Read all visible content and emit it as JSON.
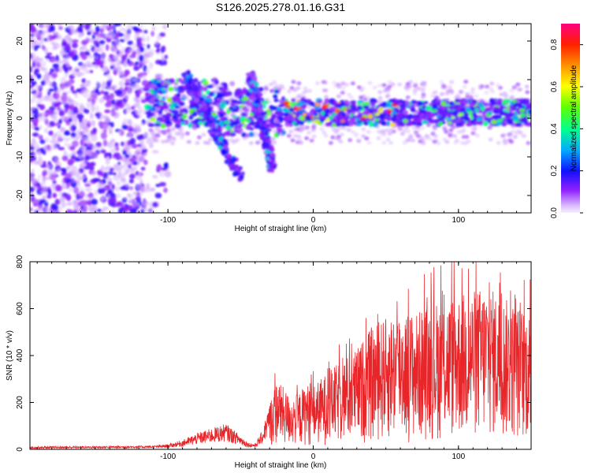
{
  "title": "S126.2025.278.01.16.G31",
  "colorbar": {
    "label": "Normalized spectral amplitude",
    "ticks": [
      "0.0",
      "0.2",
      "0.4",
      "0.6",
      "0.8"
    ],
    "tick_values": [
      0.0,
      0.2,
      0.4,
      0.6,
      0.8
    ],
    "range": [
      0.0,
      0.9
    ]
  },
  "chart_data": [
    {
      "type": "heatmap",
      "title": "S126.2025.278.01.16.G31",
      "xlabel": "Height of straight line (km)",
      "ylabel": "Frequency (Hz)",
      "xlim": [
        -195,
        150
      ],
      "ylim": [
        -24.5,
        24.5
      ],
      "xticks": [
        "-100",
        "0",
        "100"
      ],
      "xtick_values": [
        -100,
        0,
        100
      ],
      "yticks": [
        "-20",
        "-10",
        "0",
        "10",
        "20"
      ],
      "ytick_values": [
        -20,
        -10,
        0,
        10,
        20
      ],
      "colorscale": [
        "#f0e0ff",
        "#c8a0ff",
        "#8000ff",
        "#1010ff",
        "#00c8ff",
        "#00ff80",
        "#ffff00",
        "#ff8000",
        "#ff2000",
        "#ff0080"
      ],
      "features": [
        {
          "name": "noise region",
          "x_range": [
            -195,
            -115
          ],
          "freq_range": [
            -24.5,
            24.5
          ],
          "amplitude": 0.12
        },
        {
          "name": "main ridge",
          "x_range": [
            -115,
            150
          ],
          "freq_center": 1.5,
          "amplitude_peak": 0.9
        },
        {
          "name": "branch A",
          "x_start": -88,
          "freq_start": 11,
          "x_end": -50,
          "freq_end": -15
        },
        {
          "name": "branch B",
          "x_start": -43,
          "freq_start": 11,
          "x_end": -28,
          "freq_end": -13
        }
      ]
    },
    {
      "type": "line",
      "xlabel": "Height of straight line (km)",
      "ylabel": "SNR (10 * v/v)",
      "xlim": [
        -195,
        150
      ],
      "ylim": [
        0,
        800
      ],
      "xticks": [
        "-100",
        "0",
        "100"
      ],
      "xtick_values": [
        -100,
        0,
        100
      ],
      "yticks": [
        "0",
        "200",
        "400",
        "600",
        "800"
      ],
      "ytick_values": [
        0,
        200,
        400,
        600,
        800
      ],
      "color": "#e8262a",
      "series": [
        {
          "name": "SNR envelope",
          "x": [
            -195,
            -150,
            -110,
            -100,
            -90,
            -80,
            -70,
            -60,
            -50,
            -45,
            -40,
            -35,
            -30,
            -25,
            -20,
            -15,
            -10,
            -5,
            0,
            10,
            20,
            30,
            40,
            50,
            60,
            70,
            80,
            90,
            100,
            110,
            120,
            130,
            140,
            150
          ],
          "values": [
            12,
            14,
            16,
            22,
            40,
            70,
            90,
            110,
            60,
            30,
            25,
            80,
            200,
            300,
            260,
            220,
            240,
            280,
            270,
            330,
            380,
            430,
            520,
            560,
            600,
            580,
            620,
            640,
            660,
            680,
            700,
            650,
            620,
            580
          ]
        }
      ]
    }
  ]
}
